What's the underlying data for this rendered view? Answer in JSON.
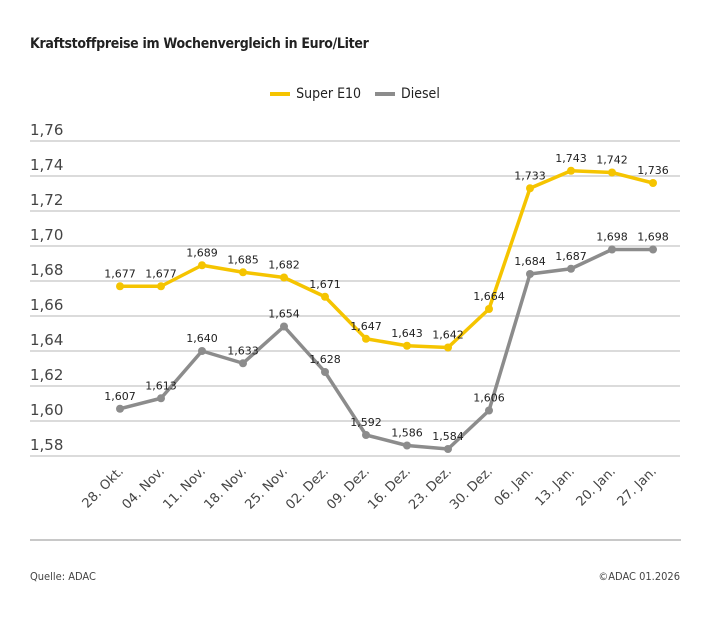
{
  "title": "Kraftstoffpreise im Wochenvergleich in Euro/Liter",
  "footer": {
    "source": "Quelle: ADAC",
    "copyright": "©ADAC 01.2026"
  },
  "chart_data": {
    "type": "line",
    "title": "Kraftstoffpreise im Wochenvergleich in Euro/Liter",
    "xlabel": "",
    "ylabel": "",
    "categories": [
      "28. Okt.",
      "04. Nov.",
      "11. Nov.",
      "18. Nov.",
      "25. Nov.",
      "02. Dez.",
      "09. Dez.",
      "16. Dez.",
      "23. Dez.",
      "30. Dez.",
      "06. Jan.",
      "13. Jan.",
      "20. Jan.",
      "27. Jan."
    ],
    "ylim": [
      1.58,
      1.76
    ],
    "yticks": [
      "1,58",
      "1,60",
      "1,62",
      "1,64",
      "1,66",
      "1,68",
      "1,70",
      "1,72",
      "1,74",
      "1,76"
    ],
    "grid": true,
    "legend": "top-center",
    "series": [
      {
        "name": "Super E10",
        "color": "#f5c400",
        "values": [
          1.677,
          1.677,
          1.689,
          1.685,
          1.682,
          1.671,
          1.647,
          1.643,
          1.642,
          1.664,
          1.733,
          1.743,
          1.742,
          1.736
        ],
        "labels": [
          "1,677",
          "1,677",
          "1,689",
          "1,685",
          "1,682",
          "1,671",
          "1,647",
          "1,643",
          "1,642",
          "1,664",
          "1,733",
          "1,743",
          "1,742",
          "1,736"
        ]
      },
      {
        "name": "Diesel",
        "color": "#8c8c8c",
        "values": [
          1.607,
          1.613,
          1.64,
          1.633,
          1.654,
          1.628,
          1.592,
          1.586,
          1.584,
          1.606,
          1.684,
          1.687,
          1.698,
          1.698
        ],
        "labels": [
          "1,607",
          "1,613",
          "1,640",
          "1,633",
          "1,654",
          "1,628",
          "1,592",
          "1,586",
          "1,584",
          "1,606",
          "1,684",
          "1,687",
          "1,698",
          "1,698"
        ]
      }
    ]
  }
}
